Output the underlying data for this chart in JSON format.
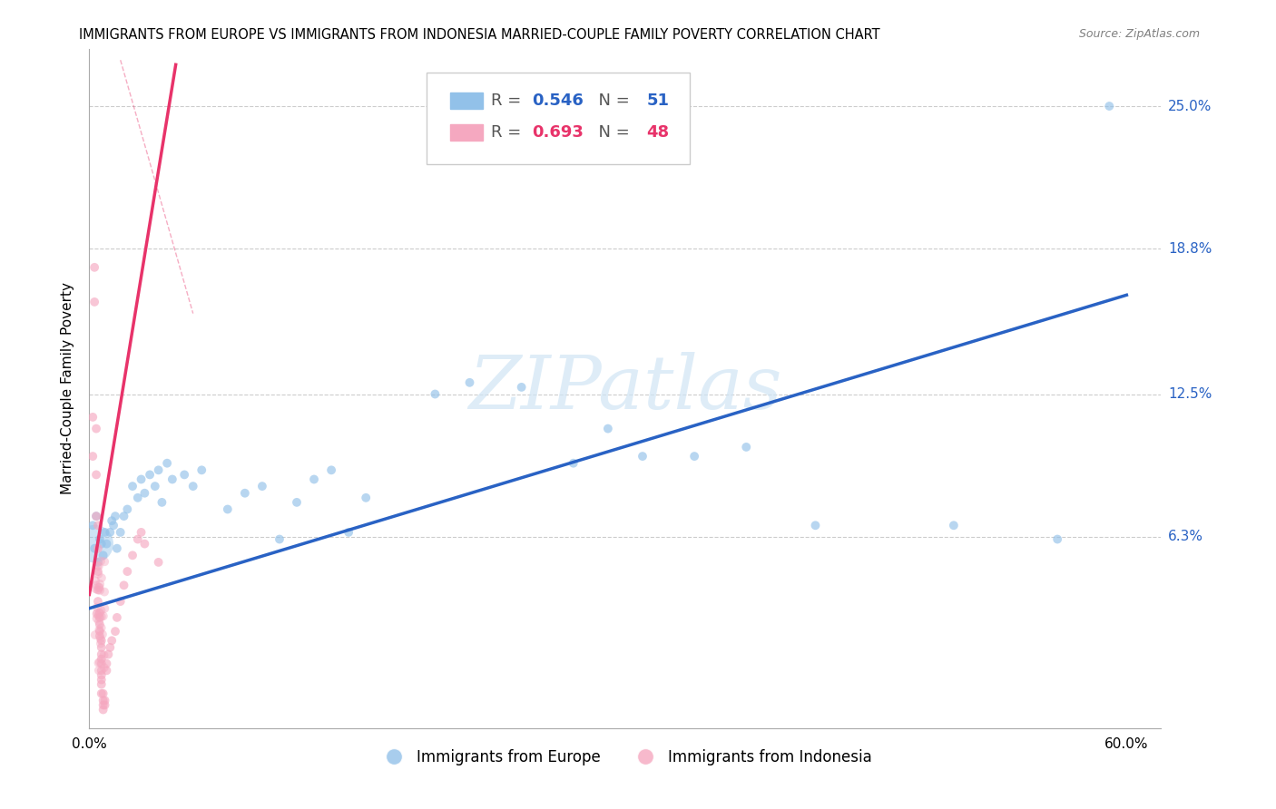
{
  "title": "IMMIGRANTS FROM EUROPE VS IMMIGRANTS FROM INDONESIA MARRIED-COUPLE FAMILY POVERTY CORRELATION CHART",
  "source": "Source: ZipAtlas.com",
  "xlim": [
    0.0,
    0.62
  ],
  "ylim": [
    -0.02,
    0.275
  ],
  "x_axis_ticks": [
    0.0,
    0.6
  ],
  "x_axis_labels": [
    "0.0%",
    "60.0%"
  ],
  "ylabel_values": [
    0.063,
    0.125,
    0.188,
    0.25
  ],
  "ylabel_labels": [
    "6.3%",
    "12.5%",
    "18.8%",
    "25.0%"
  ],
  "watermark": "ZIPatlas",
  "europe_color": "#92c1e9",
  "indonesia_color": "#f5a8c0",
  "europe_line_color": "#2962c4",
  "indonesia_line_color": "#e8336a",
  "legend_europe_R": "0.546",
  "legend_europe_N": "51",
  "legend_indonesia_R": "0.693",
  "legend_indonesia_N": "48",
  "europe_line_x0": 0.0,
  "europe_line_y0": 0.032,
  "europe_line_x1": 0.6,
  "europe_line_y1": 0.168,
  "indonesia_line_x0": 0.0,
  "indonesia_line_y0": 0.038,
  "indonesia_line_x1": 0.05,
  "indonesia_line_y1": 0.268,
  "dashed_line_x0": 0.018,
  "dashed_line_y0": 0.27,
  "dashed_line_x1": 0.06,
  "dashed_line_y1": 0.16,
  "europe_scatter": [
    [
      0.002,
      0.068
    ],
    [
      0.003,
      0.058
    ],
    [
      0.004,
      0.072
    ],
    [
      0.005,
      0.052
    ],
    [
      0.006,
      0.062
    ],
    [
      0.007,
      0.06
    ],
    [
      0.008,
      0.055
    ],
    [
      0.009,
      0.065
    ],
    [
      0.01,
      0.06
    ],
    [
      0.012,
      0.065
    ],
    [
      0.013,
      0.07
    ],
    [
      0.014,
      0.068
    ],
    [
      0.015,
      0.072
    ],
    [
      0.016,
      0.058
    ],
    [
      0.018,
      0.065
    ],
    [
      0.02,
      0.072
    ],
    [
      0.022,
      0.075
    ],
    [
      0.025,
      0.085
    ],
    [
      0.028,
      0.08
    ],
    [
      0.03,
      0.088
    ],
    [
      0.032,
      0.082
    ],
    [
      0.035,
      0.09
    ],
    [
      0.038,
      0.085
    ],
    [
      0.04,
      0.092
    ],
    [
      0.042,
      0.078
    ],
    [
      0.045,
      0.095
    ],
    [
      0.048,
      0.088
    ],
    [
      0.055,
      0.09
    ],
    [
      0.06,
      0.085
    ],
    [
      0.065,
      0.092
    ],
    [
      0.08,
      0.075
    ],
    [
      0.09,
      0.082
    ],
    [
      0.1,
      0.085
    ],
    [
      0.11,
      0.062
    ],
    [
      0.12,
      0.078
    ],
    [
      0.13,
      0.088
    ],
    [
      0.14,
      0.092
    ],
    [
      0.15,
      0.065
    ],
    [
      0.16,
      0.08
    ],
    [
      0.2,
      0.125
    ],
    [
      0.22,
      0.13
    ],
    [
      0.25,
      0.128
    ],
    [
      0.28,
      0.095
    ],
    [
      0.3,
      0.11
    ],
    [
      0.32,
      0.098
    ],
    [
      0.35,
      0.098
    ],
    [
      0.38,
      0.102
    ],
    [
      0.42,
      0.068
    ],
    [
      0.5,
      0.068
    ],
    [
      0.56,
      0.062
    ],
    [
      0.59,
      0.25
    ]
  ],
  "europe_scatter_sizes": [
    50,
    50,
    50,
    50,
    50,
    50,
    50,
    50,
    50,
    50,
    50,
    50,
    50,
    50,
    50,
    50,
    50,
    50,
    50,
    50,
    50,
    50,
    50,
    50,
    50,
    50,
    50,
    50,
    50,
    50,
    50,
    50,
    50,
    50,
    50,
    50,
    50,
    50,
    50,
    50,
    50,
    50,
    50,
    50,
    50,
    50,
    50,
    50,
    50,
    50,
    50
  ],
  "europe_big_cluster": [
    [
      0.003,
      0.058
    ]
  ],
  "indonesia_scatter": [
    [
      0.002,
      0.115
    ],
    [
      0.002,
      0.098
    ],
    [
      0.003,
      0.18
    ],
    [
      0.003,
      0.165
    ],
    [
      0.004,
      0.11
    ],
    [
      0.004,
      0.09
    ],
    [
      0.004,
      0.072
    ],
    [
      0.005,
      0.068
    ],
    [
      0.005,
      0.058
    ],
    [
      0.005,
      0.048
    ],
    [
      0.005,
      0.04
    ],
    [
      0.005,
      0.035
    ],
    [
      0.006,
      0.03
    ],
    [
      0.006,
      0.028
    ],
    [
      0.006,
      0.025
    ],
    [
      0.006,
      0.022
    ],
    [
      0.006,
      0.02
    ],
    [
      0.007,
      0.018
    ],
    [
      0.007,
      0.015
    ],
    [
      0.007,
      0.012
    ],
    [
      0.007,
      0.01
    ],
    [
      0.007,
      0.008
    ],
    [
      0.007,
      0.005
    ],
    [
      0.007,
      0.003
    ],
    [
      0.007,
      0.001
    ],
    [
      0.007,
      -0.001
    ],
    [
      0.007,
      -0.005
    ],
    [
      0.008,
      -0.005
    ],
    [
      0.008,
      -0.008
    ],
    [
      0.008,
      -0.01
    ],
    [
      0.008,
      -0.012
    ],
    [
      0.009,
      -0.01
    ],
    [
      0.009,
      -0.008
    ],
    [
      0.01,
      0.005
    ],
    [
      0.01,
      0.008
    ],
    [
      0.011,
      0.012
    ],
    [
      0.012,
      0.015
    ],
    [
      0.013,
      0.018
    ],
    [
      0.015,
      0.022
    ],
    [
      0.016,
      0.028
    ],
    [
      0.018,
      0.035
    ],
    [
      0.02,
      0.042
    ],
    [
      0.022,
      0.048
    ],
    [
      0.025,
      0.055
    ],
    [
      0.028,
      0.062
    ],
    [
      0.03,
      0.065
    ],
    [
      0.032,
      0.06
    ],
    [
      0.04,
      0.052
    ]
  ],
  "indonesia_scatter_sizes": [
    50,
    50,
    50,
    50,
    50,
    50,
    50,
    50,
    50,
    50,
    50,
    50,
    50,
    50,
    50,
    50,
    50,
    50,
    50,
    50,
    50,
    50,
    50,
    50,
    50,
    50,
    50,
    50,
    50,
    50,
    50,
    50,
    50,
    50,
    50,
    50,
    50,
    50,
    50,
    50,
    50,
    50,
    50,
    50,
    50,
    50,
    50,
    50
  ]
}
